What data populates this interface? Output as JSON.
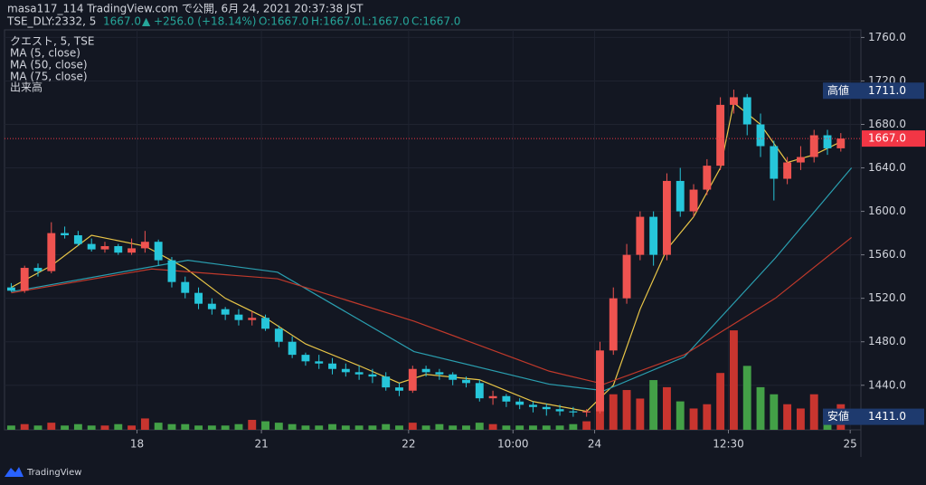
{
  "header": {
    "title": "masa117_114 TradingView.com で公開, 6月 24, 2021 20:37:38 JST",
    "symbol": "TSE_DLY:2332, 5",
    "last": "1667.0",
    "change": "▲ +256.0 (+18.14%)",
    "ohlc": [
      "O:1667.0",
      "H:1667.0",
      "L:1667.0",
      "C:1667.0"
    ]
  },
  "legend": [
    "クエスト, 5, TSE",
    "MA (5, close)",
    "MA (50, close)",
    "MA (75, close)",
    "出来高"
  ],
  "footer": "TradingView",
  "chart_data": {
    "type": "candlestick",
    "x": [
      0,
      1,
      2,
      3,
      4,
      5,
      6,
      7,
      8,
      9,
      10,
      11,
      12,
      13,
      14,
      15,
      16,
      17,
      18,
      19,
      20,
      21,
      22,
      23,
      24,
      25,
      26,
      27,
      28,
      29,
      30,
      31,
      32,
      33,
      34,
      35,
      36,
      37,
      38,
      39,
      40,
      41,
      42,
      43,
      44,
      45,
      46,
      47,
      48,
      49,
      50,
      51,
      52,
      53,
      54,
      55,
      56,
      57,
      58,
      59,
      60,
      61,
      62
    ],
    "open": [
      1530,
      1527,
      1548,
      1545,
      1580,
      1578,
      1570,
      1565,
      1568,
      1562,
      1566,
      1572,
      1555,
      1535,
      1525,
      1515,
      1510,
      1505,
      1500,
      1502,
      1492,
      1480,
      1468,
      1462,
      1460,
      1455,
      1452,
      1450,
      1448,
      1438,
      1435,
      1455,
      1452,
      1450,
      1445,
      1442,
      1428,
      1430,
      1425,
      1422,
      1420,
      1418,
      1416,
      1415,
      1416,
      1472,
      1520,
      1560,
      1595,
      1560,
      1628,
      1600,
      1620,
      1642,
      1698,
      1705,
      1680,
      1660,
      1630,
      1645,
      1650,
      1670,
      1658
    ],
    "high": [
      1534,
      1550,
      1552,
      1590,
      1586,
      1582,
      1575,
      1572,
      1570,
      1575,
      1582,
      1574,
      1558,
      1540,
      1530,
      1520,
      1512,
      1510,
      1508,
      1505,
      1495,
      1485,
      1470,
      1468,
      1465,
      1460,
      1458,
      1455,
      1452,
      1442,
      1458,
      1458,
      1455,
      1452,
      1448,
      1445,
      1435,
      1432,
      1428,
      1425,
      1423,
      1422,
      1420,
      1418,
      1480,
      1530,
      1570,
      1600,
      1600,
      1635,
      1640,
      1625,
      1648,
      1705,
      1712,
      1708,
      1690,
      1665,
      1650,
      1660,
      1675,
      1675,
      1672
    ],
    "low": [
      1526,
      1525,
      1540,
      1543,
      1575,
      1568,
      1563,
      1562,
      1560,
      1560,
      1562,
      1550,
      1530,
      1520,
      1510,
      1505,
      1500,
      1495,
      1495,
      1490,
      1475,
      1465,
      1458,
      1455,
      1450,
      1448,
      1445,
      1442,
      1435,
      1430,
      1433,
      1448,
      1445,
      1440,
      1438,
      1425,
      1422,
      1420,
      1418,
      1415,
      1412,
      1412,
      1411,
      1411,
      1414,
      1468,
      1515,
      1555,
      1550,
      1555,
      1595,
      1595,
      1615,
      1638,
      1690,
      1670,
      1650,
      1610,
      1625,
      1638,
      1645,
      1652,
      1655
    ],
    "close": [
      1527,
      1548,
      1545,
      1580,
      1578,
      1570,
      1565,
      1568,
      1562,
      1566,
      1572,
      1555,
      1535,
      1525,
      1515,
      1510,
      1505,
      1500,
      1502,
      1492,
      1480,
      1468,
      1462,
      1460,
      1455,
      1452,
      1450,
      1448,
      1438,
      1435,
      1455,
      1452,
      1450,
      1445,
      1442,
      1428,
      1430,
      1425,
      1422,
      1420,
      1418,
      1416,
      1415,
      1416,
      1472,
      1520,
      1560,
      1595,
      1560,
      1628,
      1600,
      1620,
      1642,
      1698,
      1705,
      1680,
      1660,
      1630,
      1645,
      1650,
      1670,
      1658,
      1667
    ],
    "volume": [
      3,
      4,
      3,
      5,
      3,
      4,
      3,
      3,
      4,
      3,
      8,
      5,
      4,
      4,
      3,
      3,
      3,
      4,
      7,
      6,
      5,
      4,
      3,
      3,
      4,
      3,
      3,
      3,
      4,
      3,
      5,
      3,
      4,
      3,
      3,
      5,
      4,
      3,
      3,
      3,
      3,
      3,
      4,
      6,
      30,
      25,
      28,
      22,
      35,
      30,
      20,
      15,
      18,
      40,
      70,
      45,
      30,
      25,
      18,
      15,
      25,
      12,
      18
    ],
    "up_color": "#ef5350",
    "down_color": "#26c6da",
    "volume_up_color": "#c8352f",
    "volume_down_color": "#43a047",
    "vlim": [
      0,
      100
    ],
    "ma": [
      {
        "color": "#e8c547",
        "x": [
          0,
          3,
          6,
          10,
          13,
          16,
          19,
          22,
          26,
          29,
          31,
          35,
          39,
          43,
          45,
          47,
          49,
          51,
          53,
          54,
          56,
          58,
          60,
          62
        ],
        "values": [
          1530,
          1550,
          1578,
          1568,
          1548,
          1520,
          1502,
          1478,
          1458,
          1442,
          1450,
          1445,
          1425,
          1416,
          1440,
          1510,
          1565,
          1595,
          1640,
          1700,
          1680,
          1645,
          1652,
          1664
        ]
      },
      {
        "color": "#2a9fb0",
        "x": [
          0,
          13.2,
          19.9,
          30.1,
          40.2,
          44.3,
          50.3,
          57.1,
          62.8
        ],
        "values": [
          1526,
          1555,
          1544,
          1471,
          1441,
          1435,
          1466,
          1557,
          1640
        ]
      },
      {
        "color": "#c0392b",
        "x": [
          0,
          10.5,
          19.9,
          30.1,
          40.2,
          44.3,
          50.3,
          57.1,
          62.8
        ],
        "values": [
          1525,
          1547,
          1538,
          1499,
          1453,
          1441,
          1468,
          1520,
          1576
        ]
      }
    ],
    "xlim": [
      -0.5,
      63.5
    ],
    "ylim": [
      1399,
      1767
    ],
    "xticks": [
      {
        "value": 9.4,
        "label": "18"
      },
      {
        "value": 18.7,
        "label": "21"
      },
      {
        "value": 29.7,
        "label": "22"
      },
      {
        "value": 37.5,
        "label": "10:00"
      },
      {
        "value": 43.6,
        "label": "24"
      },
      {
        "value": 53.6,
        "label": "12:30"
      },
      {
        "value": 62.7,
        "label": "25"
      }
    ],
    "yticks": [
      {
        "value": 1440,
        "label": "1440.0"
      },
      {
        "value": 1480,
        "label": "1480.0"
      },
      {
        "value": 1520,
        "label": "1520.0"
      },
      {
        "value": 1560,
        "label": "1560.0"
      },
      {
        "value": 1600,
        "label": "1600.0"
      },
      {
        "value": 1640,
        "label": "1640.0"
      },
      {
        "value": 1680,
        "label": "1680.0"
      },
      {
        "value": 1720,
        "label": "1720.0"
      },
      {
        "value": 1760,
        "label": "1760.0"
      }
    ],
    "grid": true,
    "markers": [
      {
        "label": "高値",
        "value": 1711,
        "value_label": "1711.0"
      },
      {
        "label": "安値",
        "value": 1411,
        "value_label": "1411.0"
      }
    ],
    "last_price": {
      "value": 1667,
      "label": "1667.0",
      "color": "#f23645"
    }
  }
}
